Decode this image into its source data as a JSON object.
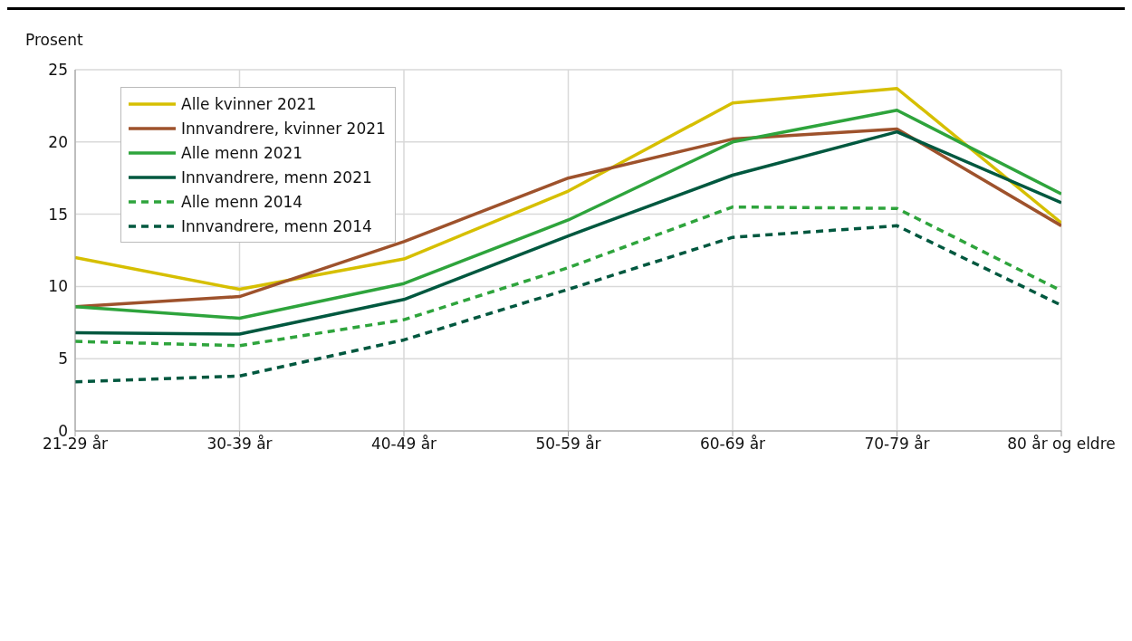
{
  "chart_data": {
    "type": "line",
    "ylabel": "Prosent",
    "categories": [
      "21-29 år",
      "30-39 år",
      "40-49 år",
      "50-59 år",
      "60-69 år",
      "70-79 år",
      "80 år og eldre"
    ],
    "series": [
      {
        "name": "Alle kvinner 2021",
        "color": "#d6bf00",
        "values": [
          12.0,
          9.8,
          11.9,
          16.6,
          22.7,
          23.7,
          14.4
        ]
      },
      {
        "name": "Innvandrere, kvinner 2021",
        "color": "#9e522c",
        "values": [
          8.6,
          9.3,
          13.1,
          17.5,
          20.2,
          20.9,
          14.2
        ]
      },
      {
        "name": "Alle menn 2021",
        "color": "#2ea43c",
        "values": [
          8.6,
          7.8,
          10.2,
          14.6,
          20.0,
          22.2,
          16.4
        ]
      },
      {
        "name": "Innvandrere, menn 2021",
        "color": "#00583f",
        "values": [
          6.8,
          6.7,
          9.1,
          13.5,
          17.7,
          20.7,
          15.8
        ]
      },
      {
        "name": "Alle menn 2014",
        "color": "#2ea43c",
        "line_style": "dashed",
        "values": [
          6.2,
          5.9,
          7.7,
          11.3,
          15.5,
          15.4,
          9.7
        ]
      },
      {
        "name": "Innvandrere, menn 2014",
        "color": "#00583f",
        "line_style": "dashed",
        "values": [
          3.4,
          3.8,
          6.3,
          9.8,
          13.4,
          14.2,
          8.7
        ]
      }
    ],
    "ylim": [
      0,
      25
    ],
    "yticks": [
      0,
      5,
      10,
      15,
      20,
      25
    ],
    "grid": true,
    "legend": "top left",
    "marker": "none",
    "line_style": "solid"
  }
}
